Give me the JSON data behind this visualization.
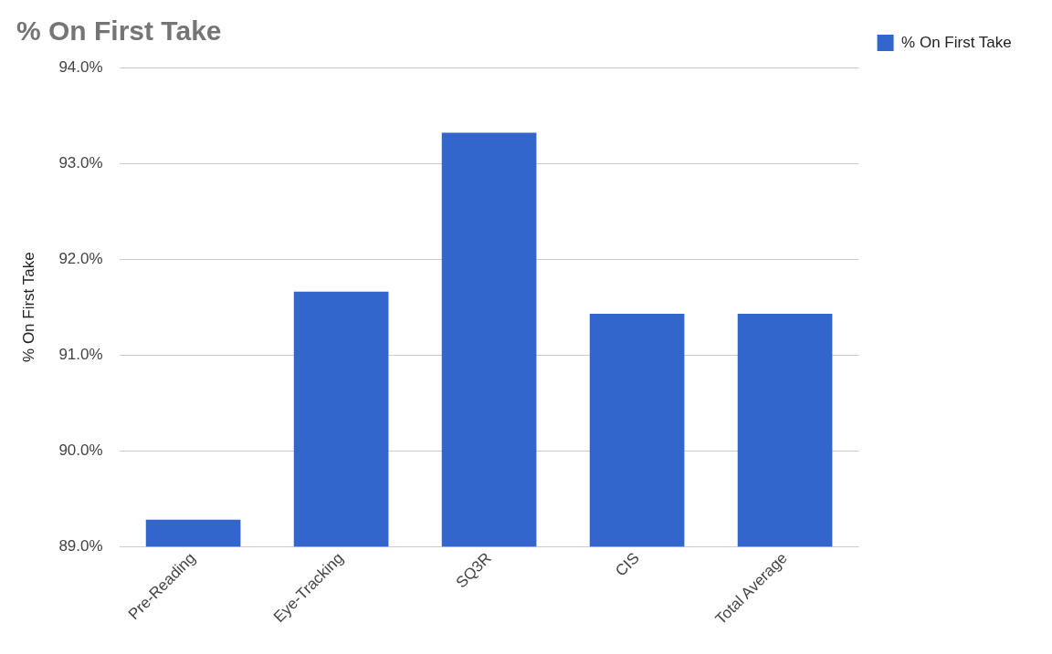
{
  "chart_data": {
    "type": "bar",
    "title": "% On First Take",
    "ylabel": "% On First Take",
    "categories": [
      "Pre-Reading",
      "Eye-Tracking",
      "SQ3R",
      "CIS",
      "Total Average"
    ],
    "series": [
      {
        "name": "% On First Take",
        "color": "#3366cc",
        "values": [
          89.28,
          91.66,
          93.32,
          91.43,
          91.43
        ]
      }
    ],
    "ylim": [
      89,
      94
    ],
    "yticks": [
      {
        "value": 89,
        "label": "89.0%"
      },
      {
        "value": 90,
        "label": "90.0%"
      },
      {
        "value": 91,
        "label": "91.0%"
      },
      {
        "value": 92,
        "label": "92.0%"
      },
      {
        "value": 93,
        "label": "93.0%"
      },
      {
        "value": 94,
        "label": "94.0%"
      }
    ],
    "grid": "y",
    "legend": "top right"
  }
}
